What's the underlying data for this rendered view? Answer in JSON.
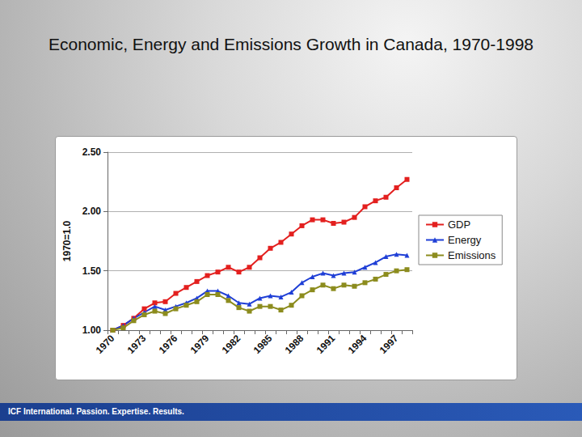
{
  "chart_data": {
    "type": "line",
    "title": "Economic, Energy and Emissions Growth in Canada, 1970-1998",
    "y_label": "1970=1.0",
    "categories": [
      "1970",
      null,
      null,
      "1973",
      null,
      null,
      "1976",
      null,
      null,
      "1979",
      null,
      null,
      "1982",
      null,
      null,
      "1985",
      null,
      null,
      "1988",
      null,
      null,
      "1991",
      null,
      null,
      "1994",
      null,
      null,
      "1997",
      null
    ],
    "series": [
      {
        "name": "GDP",
        "color": "#e3201f",
        "marker": "square",
        "values": [
          1.0,
          1.04,
          1.1,
          1.18,
          1.23,
          1.24,
          1.31,
          1.36,
          1.41,
          1.46,
          1.49,
          1.53,
          1.49,
          1.53,
          1.61,
          1.69,
          1.74,
          1.81,
          1.88,
          1.93,
          1.93,
          1.9,
          1.91,
          1.95,
          2.04,
          2.09,
          2.12,
          2.2,
          2.27
        ]
      },
      {
        "name": "Energy",
        "color": "#1f3fd6",
        "marker": "triangle",
        "values": [
          1.0,
          1.04,
          1.1,
          1.15,
          1.2,
          1.17,
          1.2,
          1.23,
          1.27,
          1.33,
          1.33,
          1.29,
          1.23,
          1.22,
          1.27,
          1.29,
          1.28,
          1.32,
          1.4,
          1.45,
          1.48,
          1.46,
          1.48,
          1.49,
          1.53,
          1.57,
          1.62,
          1.64,
          1.63
        ]
      },
      {
        "name": "Emissions",
        "color": "#8c8c1e",
        "marker": "square",
        "values": [
          1.0,
          1.02,
          1.08,
          1.13,
          1.16,
          1.14,
          1.18,
          1.21,
          1.24,
          1.3,
          1.3,
          1.25,
          1.19,
          1.16,
          1.2,
          1.2,
          1.17,
          1.21,
          1.29,
          1.34,
          1.38,
          1.35,
          1.38,
          1.37,
          1.4,
          1.43,
          1.47,
          1.5,
          1.51
        ]
      }
    ],
    "ylim": [
      1.0,
      2.5
    ],
    "yticks": [
      {
        "value": 1.0,
        "label": "1.00"
      },
      {
        "value": 1.5,
        "label": "1.50"
      },
      {
        "value": 2.0,
        "label": "2.00"
      },
      {
        "value": 2.5,
        "label": "2.50"
      }
    ],
    "grid": true,
    "legend": "right"
  },
  "footer": "ICF International. Passion. Expertise. Results."
}
